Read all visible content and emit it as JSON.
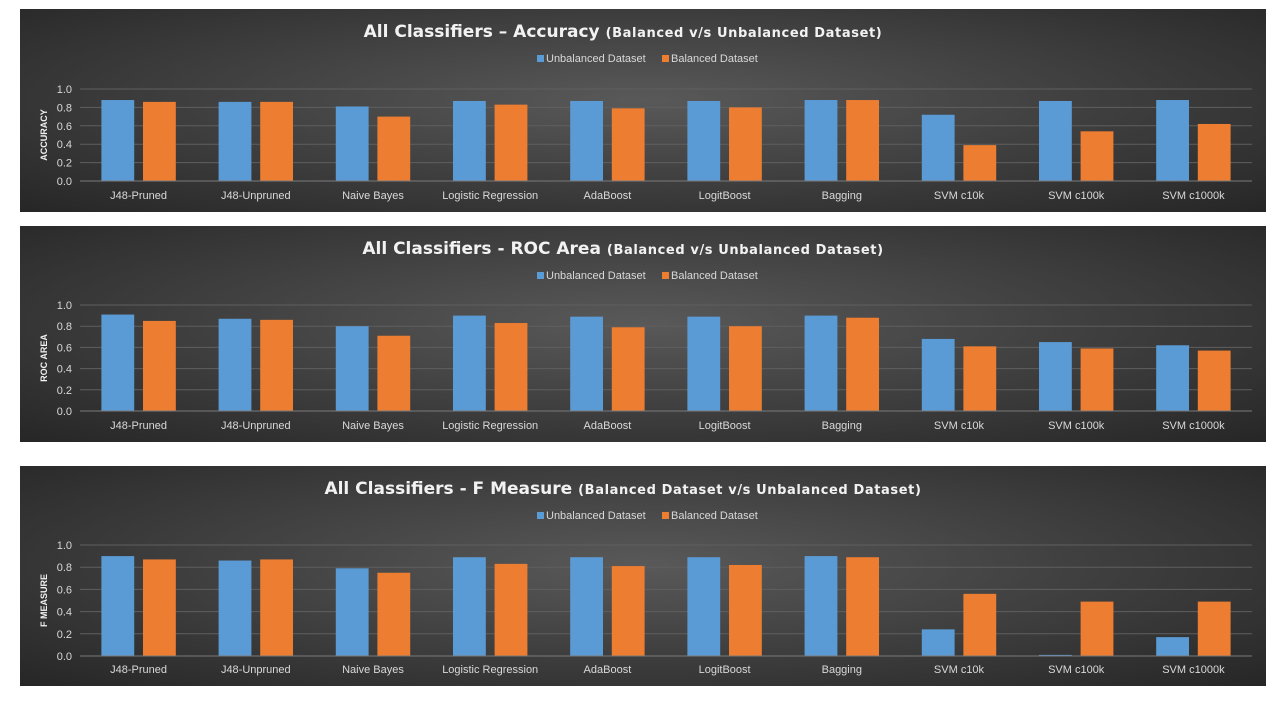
{
  "colors": {
    "unbalanced": "#5b9bd5",
    "balanced": "#ed7d31",
    "grid": "#5f5f5f",
    "text": "#d9d9d9"
  },
  "chart_data": [
    {
      "type": "bar",
      "title": "All Classifiers – Accuracy",
      "subtitle": "(Balanced v/s Unbalanced Dataset)",
      "ylabel": "ACCURACY",
      "xlabel": "",
      "ylim": [
        0,
        1.0
      ],
      "yticks": [
        "0.0",
        "0.2",
        "0.4",
        "0.6",
        "0.8",
        "1.0"
      ],
      "grid": true,
      "legend_position": "top-center",
      "categories": [
        "J48-Pruned",
        "J48-Unpruned",
        "Naive Bayes",
        "Logistic Regression",
        "AdaBoost",
        "LogitBoost",
        "Bagging",
        "SVM c10k",
        "SVM c100k",
        "SVM c1000k"
      ],
      "series": [
        {
          "name": "Unbalanced Dataset",
          "values": [
            0.88,
            0.86,
            0.81,
            0.87,
            0.87,
            0.87,
            0.88,
            0.72,
            0.87,
            0.88
          ]
        },
        {
          "name": "Balanced Dataset",
          "values": [
            0.86,
            0.86,
            0.7,
            0.83,
            0.79,
            0.8,
            0.88,
            0.39,
            0.54,
            0.62
          ]
        }
      ]
    },
    {
      "type": "bar",
      "title": "All Classifiers - ROC Area",
      "subtitle": "(Balanced v/s Unbalanced Dataset)",
      "ylabel": "ROC AREA",
      "xlabel": "",
      "ylim": [
        0,
        1.0
      ],
      "yticks": [
        "0.0",
        "0.2",
        "0.4",
        "0.6",
        "0.8",
        "1.0"
      ],
      "grid": true,
      "legend_position": "top-center",
      "categories": [
        "J48-Pruned",
        "J48-Unpruned",
        "Naive Bayes",
        "Logistic Regression",
        "AdaBoost",
        "LogitBoost",
        "Bagging",
        "SVM c10k",
        "SVM c100k",
        "SVM c1000k"
      ],
      "series": [
        {
          "name": "Unbalanced Dataset",
          "values": [
            0.91,
            0.87,
            0.8,
            0.9,
            0.89,
            0.89,
            0.9,
            0.68,
            0.65,
            0.62
          ]
        },
        {
          "name": "Balanced Dataset",
          "values": [
            0.85,
            0.86,
            0.71,
            0.83,
            0.79,
            0.8,
            0.88,
            0.61,
            0.59,
            0.57
          ]
        }
      ]
    },
    {
      "type": "bar",
      "title": "All Classifiers - F Measure",
      "subtitle": "(Balanced Dataset v/s Unbalanced Dataset)",
      "ylabel": "F MEASURE",
      "xlabel": "",
      "ylim": [
        0,
        1.0
      ],
      "yticks": [
        "0.0",
        "0.2",
        "0.4",
        "0.6",
        "0.8",
        "1.0"
      ],
      "grid": true,
      "legend_position": "top-center",
      "categories": [
        "J48-Pruned",
        "J48-Unpruned",
        "Naive Bayes",
        "Logistic Regression",
        "AdaBoost",
        "LogitBoost",
        "Bagging",
        "SVM c10k",
        "SVM c100k",
        "SVM c1000k"
      ],
      "series": [
        {
          "name": "Unbalanced Dataset",
          "values": [
            0.9,
            0.86,
            0.79,
            0.89,
            0.89,
            0.89,
            0.9,
            0.24,
            0.01,
            0.17
          ]
        },
        {
          "name": "Balanced Dataset",
          "values": [
            0.87,
            0.87,
            0.75,
            0.83,
            0.81,
            0.82,
            0.89,
            0.56,
            0.49,
            0.49
          ]
        }
      ]
    }
  ]
}
